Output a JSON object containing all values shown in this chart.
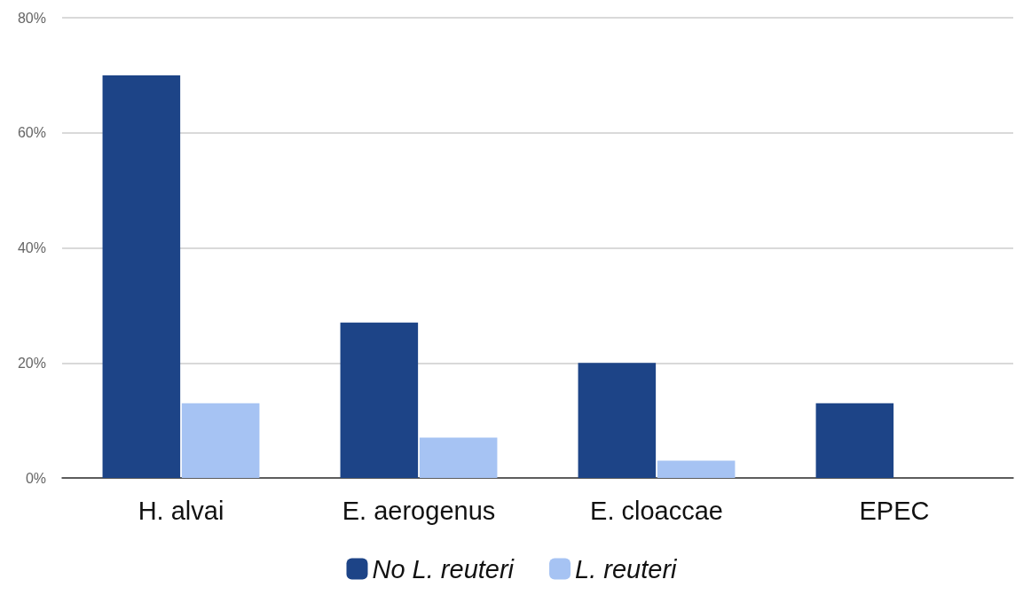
{
  "chart_data": {
    "type": "bar",
    "categories": [
      "H. alvai",
      "E. aerogenus",
      "E. cloaccae",
      "EPEC"
    ],
    "series": [
      {
        "name": "No L. reuteri",
        "color": "#1d4487",
        "values": [
          70,
          27,
          20,
          13
        ]
      },
      {
        "name": "L. reuteri",
        "color": "#a6c3f3",
        "values": [
          13,
          7,
          3,
          0
        ]
      }
    ],
    "ylim": [
      0,
      80
    ],
    "yticks": [
      {
        "value": 0,
        "label": "0%"
      },
      {
        "value": 20,
        "label": "20%"
      },
      {
        "value": 40,
        "label": "40%"
      },
      {
        "value": 60,
        "label": "60%"
      },
      {
        "value": 80,
        "label": "80%"
      }
    ],
    "grid": "y",
    "legend": "bottom"
  }
}
